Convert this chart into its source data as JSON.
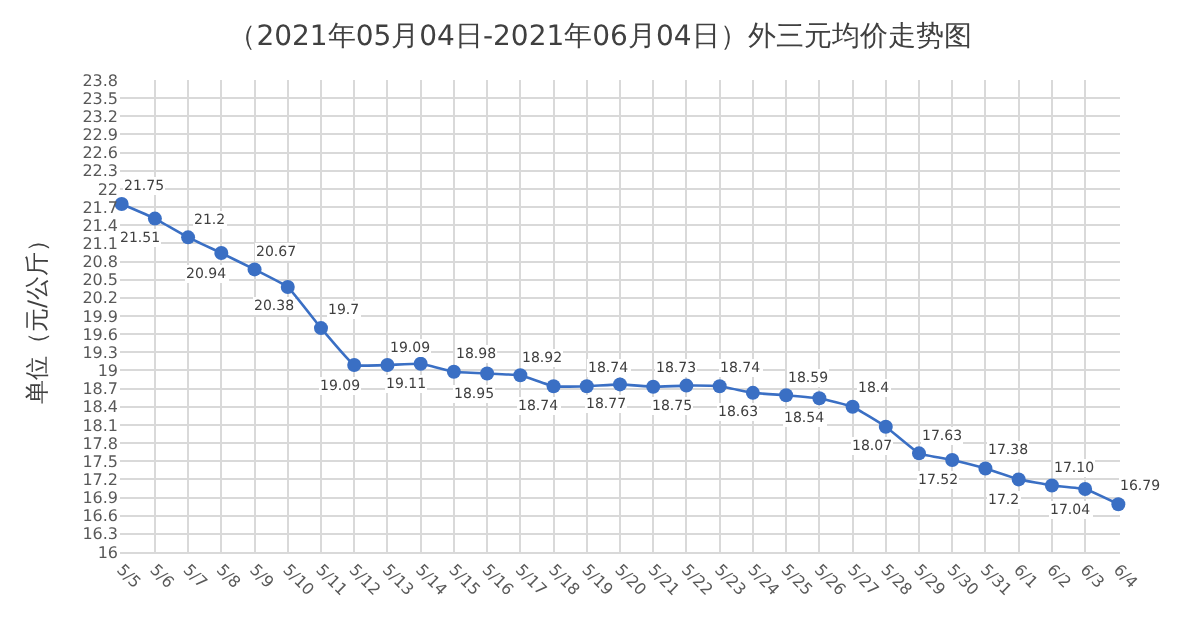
{
  "chart_data": {
    "type": "line",
    "title": "（2021年05月04日-2021年06月04日）外三元均价走势图",
    "ylabel": "单位（元/公斤）",
    "categories": [
      "5/5",
      "5/6",
      "5/7",
      "5/8",
      "5/9",
      "5/10",
      "5/11",
      "5/12",
      "5/13",
      "5/14",
      "5/15",
      "5/16",
      "5/17",
      "5/18",
      "5/19",
      "5/20",
      "5/21",
      "5/22",
      "5/23",
      "5/24",
      "5/25",
      "5/26",
      "5/27",
      "5/28",
      "5/29",
      "5/30",
      "5/31",
      "6/1",
      "6/2",
      "6/3",
      "6/4"
    ],
    "values": [
      21.75,
      21.51,
      21.2,
      20.94,
      20.67,
      20.38,
      19.7,
      19.09,
      19.09,
      19.11,
      18.98,
      18.95,
      18.92,
      18.74,
      18.74,
      18.77,
      18.73,
      18.75,
      18.74,
      18.63,
      18.59,
      18.54,
      18.4,
      18.07,
      17.63,
      17.52,
      17.38,
      17.2,
      17.1,
      17.04,
      16.79
    ],
    "value_labels": [
      "21.75",
      "21.51",
      "21.2",
      "20.94",
      "20.67",
      "20.38",
      "19.7",
      "19.09",
      "19.09",
      "19.11",
      "18.98",
      "18.95",
      "18.92",
      "18.74",
      "18.74",
      "18.77",
      "18.73",
      "18.75",
      "18.74",
      "18.63",
      "18.59",
      "18.54",
      "18.4",
      "18.07",
      "17.63",
      "17.52",
      "17.38",
      "17.2",
      "17.10",
      "17.04",
      "16.79"
    ],
    "color": "#3a6fc4",
    "ylim": [
      16,
      23.8
    ],
    "yticks": [
      16,
      16.3,
      16.6,
      16.9,
      17.2,
      17.5,
      17.8,
      18.1,
      18.4,
      18.7,
      19,
      19.3,
      19.6,
      19.9,
      20.2,
      20.5,
      20.8,
      21.1,
      21.4,
      21.7,
      22,
      22.3,
      22.6,
      22.9,
      23.2,
      23.5,
      23.8
    ],
    "grid": true,
    "marker": "circle",
    "line_style": "solid"
  }
}
